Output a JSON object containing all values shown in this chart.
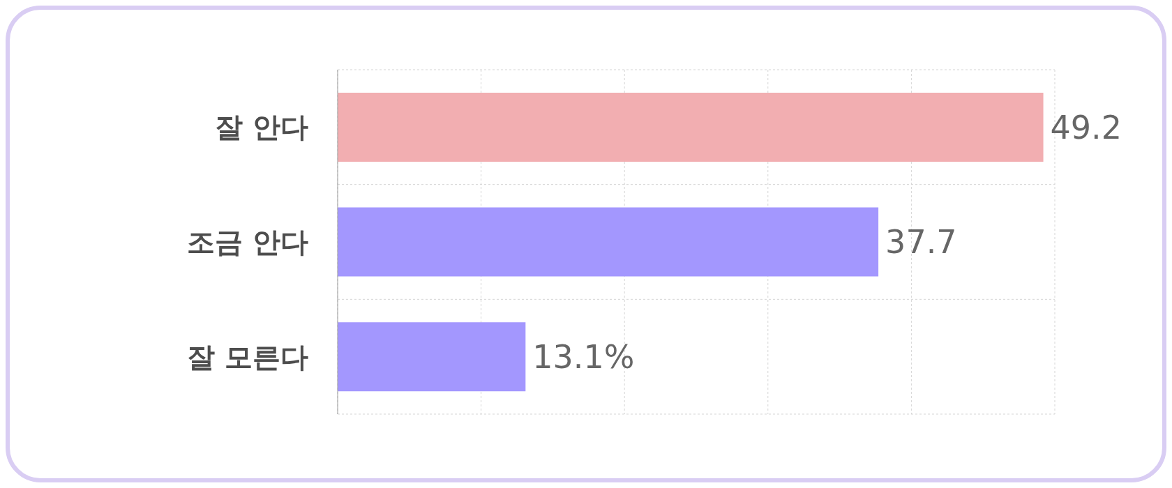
{
  "chart_data": {
    "type": "bar",
    "orientation": "horizontal",
    "categories": [
      "잘 안다",
      "조금 안다",
      "잘 모른다"
    ],
    "values": [
      49.2,
      37.7,
      13.1
    ],
    "colors": [
      "#f2aeb1",
      "#a397fe",
      "#a397fe"
    ],
    "value_labels": [
      "49.2",
      "37.7",
      "13.1%"
    ],
    "xlim": [
      0,
      50
    ],
    "tick_labels": "y",
    "grid": true
  }
}
